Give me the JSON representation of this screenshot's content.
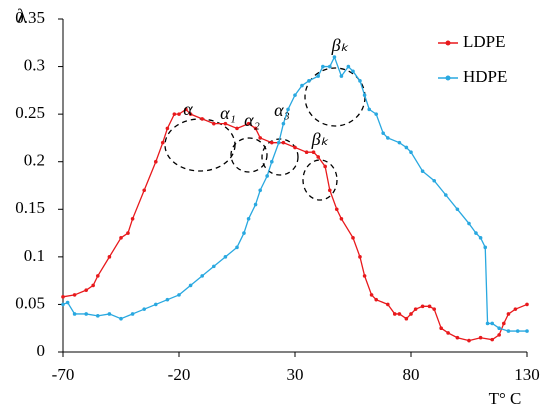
{
  "chart_data": {
    "type": "line",
    "y_label": "λ",
    "x_label": "T° C",
    "xlim": [
      -70,
      130
    ],
    "xticks": [
      -70,
      -20,
      30,
      80,
      130
    ],
    "ylim": [
      0,
      0.35
    ],
    "yticks": [
      0,
      0.05,
      0.1,
      0.15,
      0.2,
      0.25,
      0.3,
      0.35
    ],
    "grid": false,
    "legend": "upper right",
    "annotations": [
      "α",
      "α₁",
      "α₂",
      "α₃",
      "βₖ",
      "βₖ"
    ],
    "series": [
      {
        "name": "LDPE",
        "color": "#e8191c",
        "x": [
          -70,
          -65,
          -60,
          -57,
          -55,
          -50,
          -45,
          -42,
          -40,
          -35,
          -30,
          -27,
          -25,
          -22,
          -20,
          -17,
          -15,
          -10,
          -5,
          0,
          5,
          10,
          13,
          15,
          20,
          25,
          30,
          35,
          38,
          40,
          43,
          45,
          48,
          50,
          55,
          58,
          60,
          63,
          65,
          70,
          73,
          75,
          78,
          80,
          82,
          85,
          88,
          90,
          93,
          96,
          100,
          105,
          110,
          115,
          118,
          120,
          122,
          125,
          130
        ],
        "values": [
          0.058,
          0.06,
          0.065,
          0.07,
          0.08,
          0.1,
          0.12,
          0.125,
          0.14,
          0.17,
          0.2,
          0.22,
          0.235,
          0.25,
          0.25,
          0.255,
          0.25,
          0.245,
          0.24,
          0.24,
          0.235,
          0.24,
          0.235,
          0.225,
          0.22,
          0.22,
          0.215,
          0.21,
          0.21,
          0.205,
          0.195,
          0.17,
          0.15,
          0.14,
          0.12,
          0.1,
          0.08,
          0.06,
          0.055,
          0.05,
          0.04,
          0.04,
          0.035,
          0.04,
          0.045,
          0.048,
          0.048,
          0.045,
          0.025,
          0.02,
          0.015,
          0.012,
          0.015,
          0.013,
          0.018,
          0.03,
          0.04,
          0.045,
          0.05
        ]
      },
      {
        "name": "HDPE",
        "color": "#29a8e0",
        "x": [
          -70,
          -68,
          -65,
          -60,
          -55,
          -50,
          -45,
          -40,
          -35,
          -30,
          -25,
          -20,
          -15,
          -10,
          -5,
          0,
          5,
          8,
          10,
          13,
          15,
          18,
          20,
          23,
          25,
          27,
          30,
          33,
          36,
          40,
          42,
          45,
          47,
          50,
          53,
          55,
          58,
          60,
          62,
          65,
          68,
          70,
          75,
          78,
          80,
          85,
          90,
          95,
          100,
          105,
          108,
          110,
          112,
          113,
          115,
          118,
          122,
          126,
          130
        ],
        "values": [
          0.05,
          0.052,
          0.04,
          0.04,
          0.038,
          0.04,
          0.035,
          0.04,
          0.045,
          0.05,
          0.055,
          0.06,
          0.07,
          0.08,
          0.09,
          0.1,
          0.11,
          0.125,
          0.14,
          0.155,
          0.17,
          0.185,
          0.2,
          0.22,
          0.24,
          0.255,
          0.27,
          0.28,
          0.285,
          0.29,
          0.3,
          0.3,
          0.31,
          0.29,
          0.3,
          0.295,
          0.285,
          0.27,
          0.255,
          0.25,
          0.23,
          0.225,
          0.22,
          0.215,
          0.21,
          0.19,
          0.18,
          0.165,
          0.15,
          0.135,
          0.125,
          0.12,
          0.11,
          0.03,
          0.03,
          0.025,
          0.022,
          0.022,
          0.022
        ]
      }
    ]
  }
}
